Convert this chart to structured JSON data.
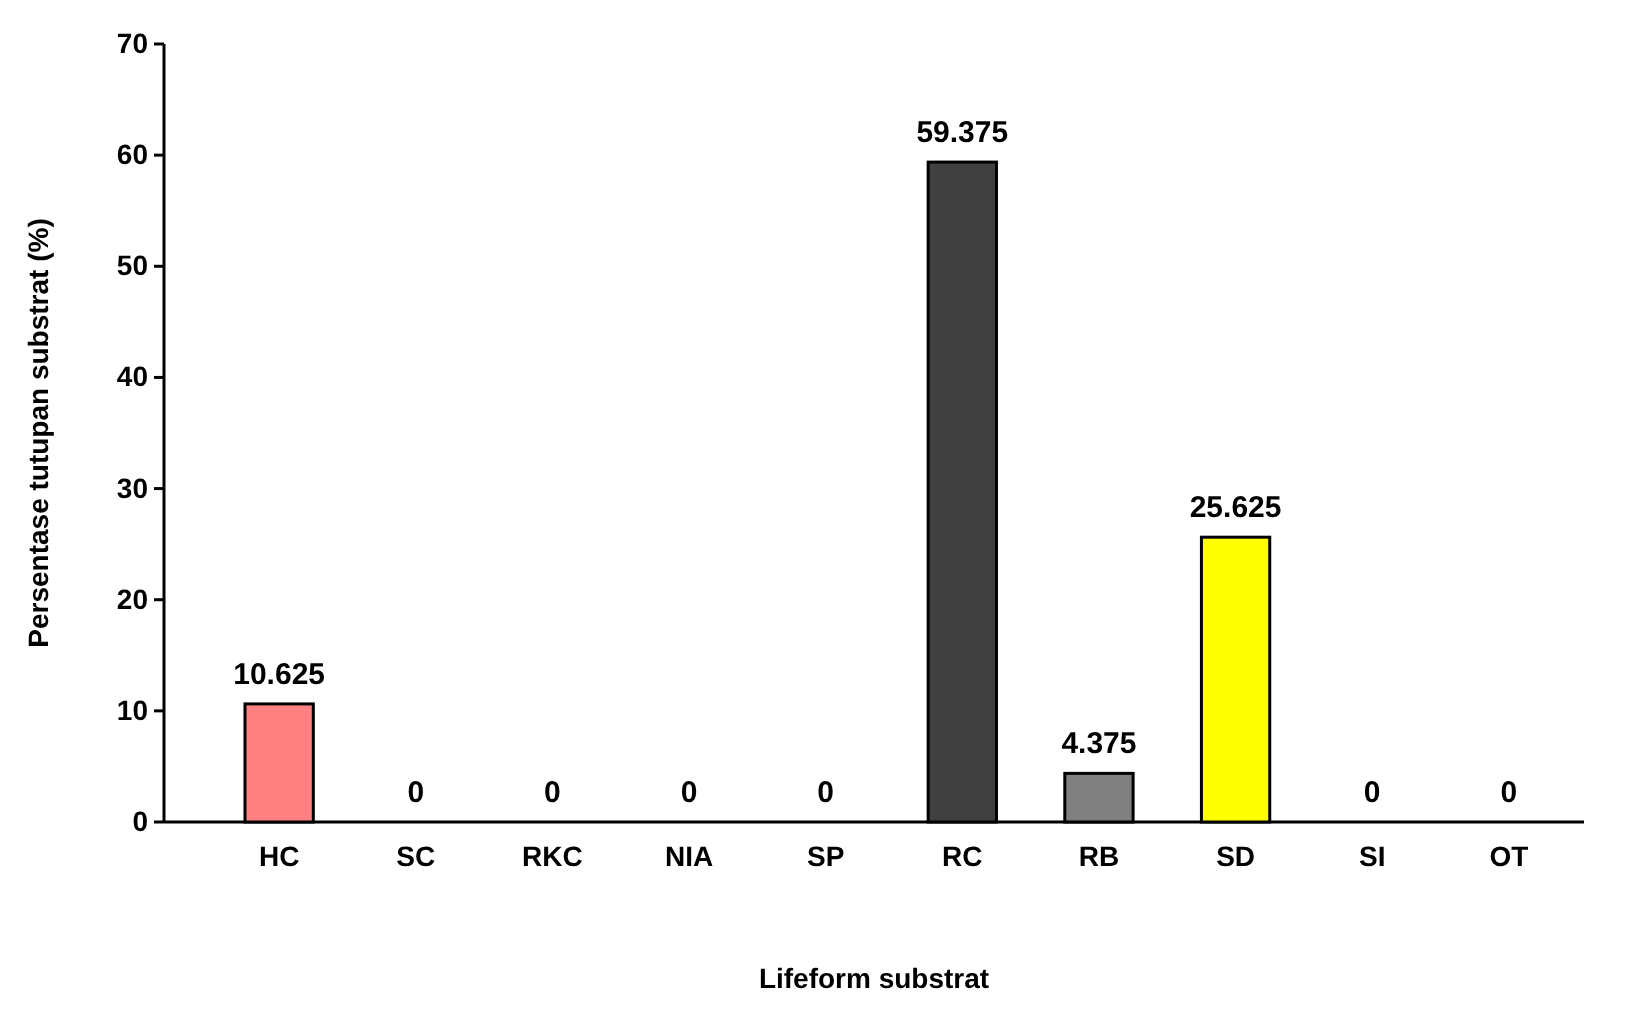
{
  "chart_data": {
    "type": "bar",
    "xlabel": "Lifeform substrat",
    "ylabel": "Persentase tutupan substrat (%)",
    "categories": [
      "HC",
      "SC",
      "RKC",
      "NIA",
      "SP",
      "RC",
      "RB",
      "SD",
      "SI",
      "OT"
    ],
    "values": [
      10.625,
      0,
      0,
      0,
      0,
      59.375,
      4.375,
      25.625,
      0,
      0
    ],
    "colors": [
      "#ff8080",
      "#ff8080",
      "#ff8080",
      "#ff8080",
      "#ff8080",
      "#404040",
      "#808080",
      "#ffff00",
      "#ff8080",
      "#ff8080"
    ],
    "ylim": [
      0,
      70
    ],
    "yticks": [
      0,
      10,
      20,
      30,
      40,
      50,
      60,
      70
    ],
    "data_labels": true,
    "grid": false
  }
}
